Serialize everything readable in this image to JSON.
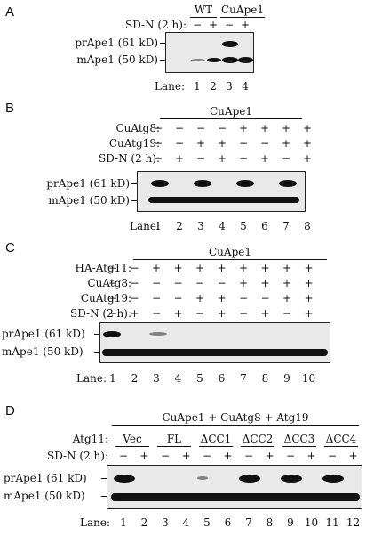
{
  "panels": {
    "A": {
      "letter": "A",
      "group_labels": [
        "WT",
        "CuApe1"
      ],
      "row_labels": [
        "SD-N (2 h):"
      ],
      "rows": [
        [
          "−",
          "+",
          "−",
          "+"
        ]
      ],
      "band_labels": [
        "prApe1 (61 kD)",
        "mApe1 (50 kD)"
      ],
      "lane_label": "Lane:",
      "lanes": [
        "1",
        "2",
        "3",
        "4"
      ]
    },
    "B": {
      "letter": "B",
      "group_labels": [
        "CuApe1"
      ],
      "row_labels": [
        "CuAtg8:",
        "CuAtg19:",
        "SD-N (2 h):"
      ],
      "rows": [
        [
          "−",
          "−",
          "−",
          "−",
          "+",
          "+",
          "+",
          "+"
        ],
        [
          "−",
          "−",
          "+",
          "+",
          "−",
          "−",
          "+",
          "+"
        ],
        [
          "−",
          "+",
          "−",
          "+",
          "−",
          "+",
          "−",
          "+"
        ]
      ],
      "band_labels": [
        "prApe1 (61 kD)",
        "mApe1 (50 kD)"
      ],
      "lane_label": "Lane:",
      "lanes": [
        "1",
        "2",
        "3",
        "4",
        "5",
        "6",
        "7",
        "8"
      ]
    },
    "C": {
      "letter": "C",
      "group_labels": [
        "CuApe1"
      ],
      "row_labels": [
        "HA-Atg11:",
        "CuAtg8:",
        "CuAtg19:",
        "SD-N (2 h):"
      ],
      "rows": [
        [
          "−",
          "−",
          "+",
          "+",
          "+",
          "+",
          "+",
          "+",
          "+",
          "+"
        ],
        [
          "−",
          "−",
          "−",
          "−",
          "−",
          "−",
          "+",
          "+",
          "+",
          "+"
        ],
        [
          "−",
          "−",
          "−",
          "−",
          "+",
          "+",
          "−",
          "−",
          "+",
          "+"
        ],
        [
          "−",
          "+",
          "−",
          "+",
          "−",
          "+",
          "−",
          "+",
          "−",
          "+"
        ]
      ],
      "band_labels": [
        "prApe1 (61 kD)",
        "mApe1 (50 kD)"
      ],
      "lane_label": "Lane:",
      "lanes": [
        "1",
        "2",
        "3",
        "4",
        "5",
        "6",
        "7",
        "8",
        "9",
        "10"
      ]
    },
    "D": {
      "letter": "D",
      "title": "CuApe1 + CuAtg8 + Atg19",
      "row_labels": [
        "Atg11:",
        "SD-N (2 h):"
      ],
      "atg11_groups": [
        "Vec",
        "FL",
        "ΔCC1",
        "ΔCC2",
        "ΔCC3",
        "ΔCC4"
      ],
      "rows": [
        [
          "−",
          "+",
          "−",
          "+",
          "−",
          "+",
          "−",
          "+",
          "−",
          "+",
          "−",
          "+"
        ]
      ],
      "band_labels": [
        "prApe1 (61 kD)",
        "mApe1 (50 kD)"
      ],
      "lane_label": "Lane:",
      "lanes": [
        "1",
        "2",
        "3",
        "4",
        "5",
        "6",
        "7",
        "8",
        "9",
        "10",
        "11",
        "12"
      ]
    }
  }
}
